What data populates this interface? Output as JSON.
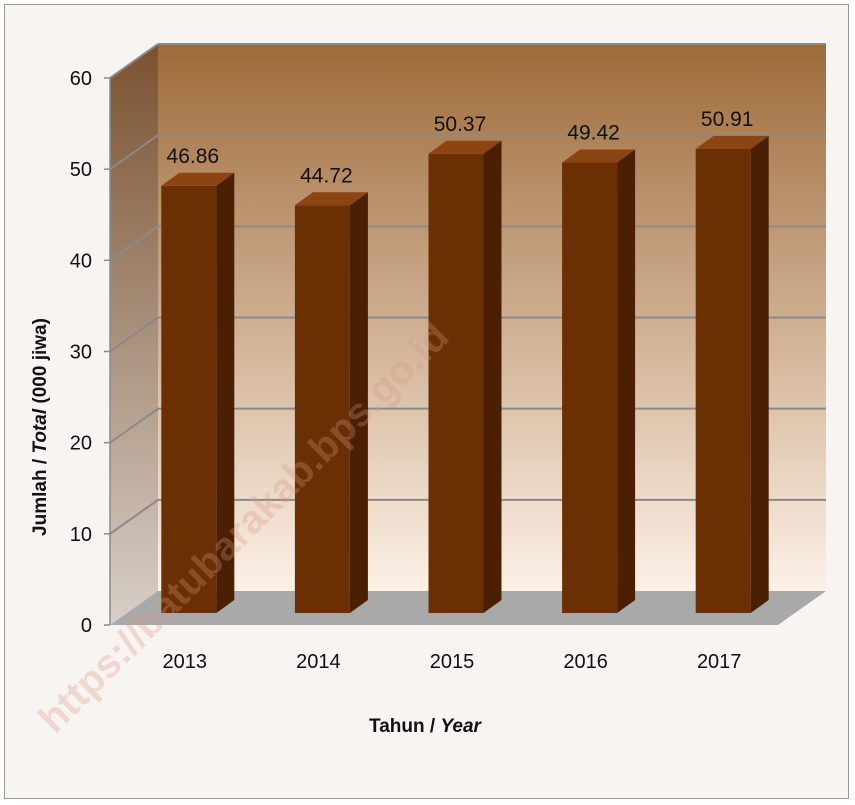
{
  "chart_data": {
    "type": "bar",
    "categories": [
      "2013",
      "2014",
      "2015",
      "2016",
      "2017"
    ],
    "values": [
      46.86,
      44.72,
      50.37,
      49.42,
      50.91
    ],
    "data_labels": [
      "46.86",
      "44.72",
      "50.37",
      "49.42",
      "50.91"
    ],
    "title": "",
    "xlabel": {
      "plain": "Tahun / ",
      "italic": "Year"
    },
    "ylabel": {
      "pre": "Jumlah / ",
      "italic": "Total",
      "post": " (000 jiwa)"
    },
    "ylim": [
      0,
      60
    ],
    "yticks": [
      0,
      10,
      20,
      30,
      40,
      50,
      60
    ],
    "grid": true,
    "three_d": true,
    "colors": {
      "bar_front": "#6b2f04",
      "bar_side": "#4a1f02",
      "bar_top": "#8a4512",
      "wall_top": "#9e6b3a",
      "wall_bottom": "#fdf1e6",
      "floor": "#a9a9a9"
    }
  },
  "watermark": "https://batubarakab.bps.go.id"
}
